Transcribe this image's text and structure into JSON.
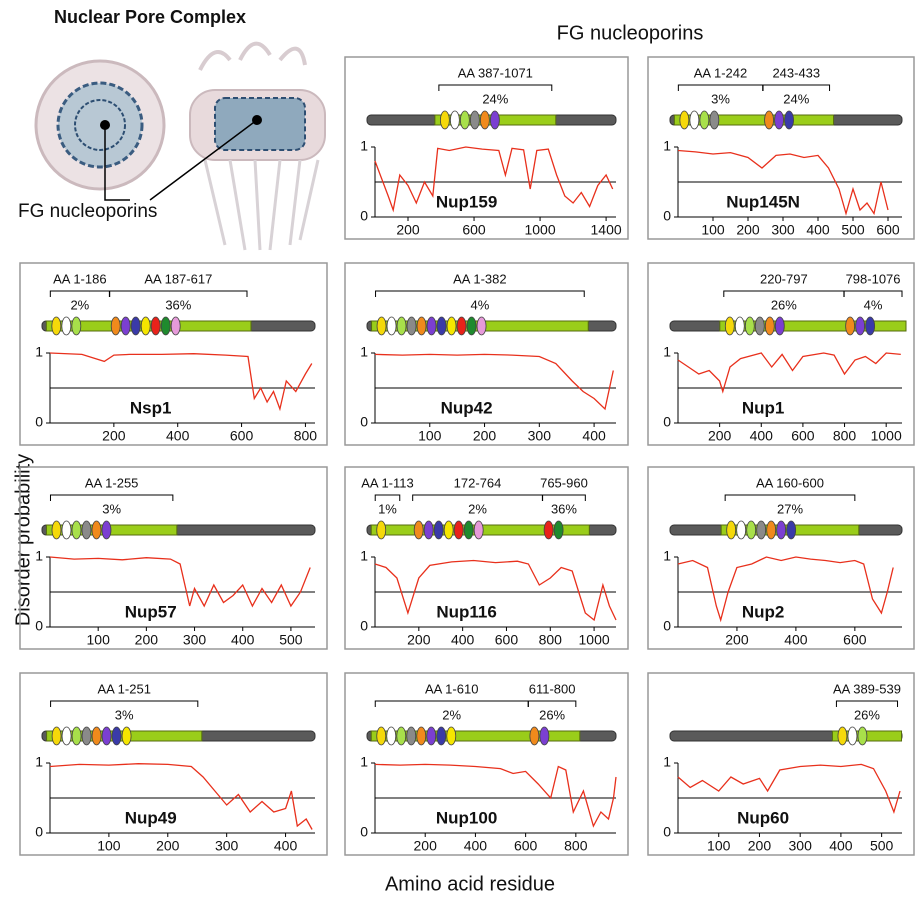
{
  "figure": {
    "title": "Nuclear  Pore Complex",
    "npc_label": "FG nucleoporins",
    "header": "FG nucleoporins",
    "y_label": "Disorder  probability",
    "x_label": "Amino acid residue"
  },
  "chart_data": [
    {
      "type": "line",
      "title": "Nup159",
      "regions": [
        {
          "label": "AA 387-1071",
          "percent": "24%"
        }
      ],
      "threshold": 0.5,
      "ylim": [
        0,
        1
      ],
      "yticks": [
        0,
        1
      ],
      "xlim": [
        0,
        1460
      ],
      "xticks": [
        200,
        600,
        1000,
        1400
      ],
      "x": [
        0,
        40,
        80,
        110,
        150,
        200,
        250,
        300,
        350,
        380,
        450,
        550,
        650,
        750,
        790,
        830,
        900,
        940,
        980,
        1050,
        1100,
        1150,
        1200,
        1250,
        1300,
        1350,
        1400,
        1440
      ],
      "values": [
        0.8,
        0.55,
        0.3,
        0.1,
        0.6,
        0.45,
        0.2,
        0.5,
        0.3,
        0.98,
        0.95,
        1.0,
        0.97,
        0.95,
        0.6,
        0.98,
        0.96,
        0.4,
        0.95,
        0.97,
        0.6,
        0.3,
        0.2,
        0.35,
        0.15,
        0.45,
        0.6,
        0.4
      ]
    },
    {
      "type": "line",
      "title": "Nup145N",
      "regions": [
        {
          "label": "AA 1-242",
          "percent": "3%"
        },
        {
          "label": "243-433",
          "percent": "24%"
        }
      ],
      "threshold": 0.5,
      "ylim": [
        0,
        1
      ],
      "yticks": [
        0,
        1
      ],
      "xlim": [
        0,
        640
      ],
      "xticks": [
        100,
        200,
        300,
        400,
        500,
        600
      ],
      "x": [
        0,
        50,
        100,
        150,
        200,
        240,
        280,
        320,
        360,
        400,
        430,
        460,
        480,
        500,
        520,
        540,
        560,
        580,
        600
      ],
      "values": [
        0.95,
        0.93,
        0.9,
        0.92,
        0.85,
        0.7,
        0.88,
        0.9,
        0.85,
        0.88,
        0.7,
        0.4,
        0.05,
        0.4,
        0.1,
        0.2,
        0.05,
        0.5,
        0.1
      ]
    },
    {
      "type": "line",
      "title": "Nsp1",
      "regions": [
        {
          "label": "AA 1-186",
          "percent": "2%"
        },
        {
          "label": "AA 187-617",
          "percent": "36%"
        }
      ],
      "threshold": 0.5,
      "ylim": [
        0,
        1
      ],
      "yticks": [
        0,
        1
      ],
      "xlim": [
        0,
        830
      ],
      "xticks": [
        200,
        400,
        600,
        800
      ],
      "x": [
        0,
        100,
        170,
        200,
        250,
        350,
        450,
        550,
        620,
        640,
        660,
        680,
        700,
        720,
        740,
        770,
        800,
        820
      ],
      "values": [
        1.0,
        0.98,
        0.88,
        0.97,
        0.98,
        0.98,
        0.99,
        0.97,
        0.95,
        0.35,
        0.5,
        0.3,
        0.45,
        0.2,
        0.6,
        0.45,
        0.7,
        0.85
      ]
    },
    {
      "type": "line",
      "title": "Nup42",
      "regions": [
        {
          "label": "AA 1-382",
          "percent": "4%"
        }
      ],
      "threshold": 0.5,
      "ylim": [
        0,
        1
      ],
      "yticks": [
        0,
        1
      ],
      "xlim": [
        0,
        440
      ],
      "xticks": [
        100,
        200,
        300,
        400
      ],
      "x": [
        0,
        50,
        100,
        150,
        200,
        250,
        300,
        330,
        360,
        380,
        400,
        420,
        435
      ],
      "values": [
        0.98,
        0.97,
        0.98,
        0.97,
        0.98,
        0.97,
        0.95,
        0.85,
        0.6,
        0.45,
        0.35,
        0.2,
        0.75
      ]
    },
    {
      "type": "line",
      "title": "Nup1",
      "regions": [
        {
          "label": "220-797",
          "percent": "26%"
        },
        {
          "label": "798-1076",
          "percent": "4%"
        }
      ],
      "threshold": 0.5,
      "ylim": [
        0,
        1
      ],
      "yticks": [
        0,
        1
      ],
      "xlim": [
        0,
        1076
      ],
      "xticks": [
        200,
        400,
        600,
        800,
        1000
      ],
      "x": [
        0,
        50,
        100,
        150,
        200,
        215,
        250,
        300,
        400,
        450,
        500,
        550,
        600,
        700,
        750,
        800,
        850,
        900,
        950,
        1000,
        1070
      ],
      "values": [
        0.9,
        0.8,
        0.7,
        0.75,
        0.6,
        0.45,
        0.8,
        0.92,
        1.0,
        0.8,
        0.98,
        0.75,
        0.95,
        1.0,
        0.97,
        0.7,
        0.9,
        0.95,
        0.85,
        1.0,
        0.98
      ]
    },
    {
      "type": "line",
      "title": "Nup57",
      "regions": [
        {
          "label": "AA 1-255",
          "percent": "3%"
        }
      ],
      "threshold": 0.5,
      "ylim": [
        0,
        1
      ],
      "yticks": [
        0,
        1
      ],
      "xlim": [
        0,
        550
      ],
      "xticks": [
        100,
        200,
        300,
        400,
        500
      ],
      "x": [
        0,
        50,
        100,
        150,
        200,
        250,
        270,
        290,
        300,
        320,
        340,
        360,
        380,
        400,
        420,
        440,
        460,
        480,
        500,
        520,
        540
      ],
      "values": [
        1.0,
        0.97,
        0.98,
        0.96,
        0.99,
        0.97,
        0.9,
        0.3,
        0.55,
        0.3,
        0.6,
        0.35,
        0.45,
        0.6,
        0.3,
        0.55,
        0.35,
        0.6,
        0.3,
        0.5,
        0.85
      ]
    },
    {
      "type": "line",
      "title": "Nup116",
      "regions": [
        {
          "label": "AA 1-113",
          "percent": "1%"
        },
        {
          "label": "172-764",
          "percent": "2%"
        },
        {
          "label": "765-960",
          "percent": "36%"
        }
      ],
      "threshold": 0.5,
      "ylim": [
        0,
        1
      ],
      "yticks": [
        0,
        1
      ],
      "xlim": [
        0,
        1100
      ],
      "xticks": [
        200,
        400,
        600,
        800,
        1000
      ],
      "x": [
        0,
        50,
        100,
        150,
        200,
        250,
        350,
        450,
        550,
        650,
        700,
        750,
        800,
        850,
        900,
        940,
        960,
        1000,
        1040,
        1070,
        1100
      ],
      "values": [
        0.9,
        0.85,
        0.7,
        0.2,
        0.7,
        0.88,
        0.93,
        0.95,
        0.92,
        0.94,
        0.9,
        0.6,
        0.7,
        0.85,
        0.8,
        0.4,
        0.2,
        0.1,
        0.6,
        0.3,
        0.1
      ]
    },
    {
      "type": "line",
      "title": "Nup2",
      "regions": [
        {
          "label": "AA 160-600",
          "percent": "27%"
        }
      ],
      "threshold": 0.5,
      "ylim": [
        0,
        1
      ],
      "yticks": [
        0,
        1
      ],
      "xlim": [
        0,
        760
      ],
      "xticks": [
        200,
        400,
        600
      ],
      "x": [
        0,
        50,
        100,
        130,
        145,
        170,
        200,
        250,
        300,
        350,
        400,
        450,
        500,
        550,
        600,
        630,
        660,
        690,
        710,
        730
      ],
      "values": [
        0.9,
        0.95,
        0.85,
        0.3,
        0.1,
        0.5,
        0.85,
        0.9,
        1.0,
        0.95,
        1.0,
        0.97,
        0.95,
        0.92,
        0.95,
        0.9,
        0.4,
        0.2,
        0.5,
        0.85
      ]
    },
    {
      "type": "line",
      "title": "Nup49",
      "regions": [
        {
          "label": "AA 1-251",
          "percent": "3%"
        }
      ],
      "threshold": 0.5,
      "ylim": [
        0,
        1
      ],
      "yticks": [
        0,
        1
      ],
      "xlim": [
        0,
        450
      ],
      "xticks": [
        100,
        200,
        300,
        400
      ],
      "x": [
        0,
        50,
        100,
        150,
        200,
        240,
        260,
        280,
        300,
        320,
        340,
        360,
        380,
        400,
        410,
        420,
        435,
        445
      ],
      "values": [
        0.95,
        0.98,
        0.97,
        0.99,
        0.98,
        0.95,
        0.8,
        0.6,
        0.4,
        0.55,
        0.3,
        0.45,
        0.3,
        0.35,
        0.6,
        0.1,
        0.2,
        0.05
      ]
    },
    {
      "type": "line",
      "title": "Nup100",
      "regions": [
        {
          "label": "AA 1-610",
          "percent": "2%"
        },
        {
          "label": "611-800",
          "percent": "26%"
        }
      ],
      "threshold": 0.5,
      "ylim": [
        0,
        1
      ],
      "yticks": [
        0,
        1
      ],
      "xlim": [
        0,
        960
      ],
      "xticks": [
        200,
        400,
        600,
        800
      ],
      "x": [
        0,
        100,
        200,
        300,
        400,
        500,
        550,
        600,
        650,
        700,
        730,
        760,
        790,
        830,
        870,
        900,
        930,
        950,
        960
      ],
      "values": [
        0.98,
        0.97,
        0.98,
        0.97,
        0.95,
        0.92,
        0.85,
        0.88,
        0.7,
        0.5,
        0.95,
        0.9,
        0.3,
        0.6,
        0.1,
        0.3,
        0.2,
        0.5,
        0.8
      ]
    },
    {
      "type": "line",
      "title": "Nup60",
      "regions": [
        {
          "label": "AA 389-539",
          "percent": "26%"
        }
      ],
      "threshold": 0.5,
      "ylim": [
        0,
        1
      ],
      "yticks": [
        0,
        1
      ],
      "xlim": [
        0,
        550
      ],
      "xticks": [
        100,
        200,
        300,
        400,
        500
      ],
      "x": [
        0,
        30,
        60,
        100,
        130,
        160,
        200,
        220,
        250,
        300,
        350,
        400,
        450,
        480,
        510,
        530,
        545
      ],
      "values": [
        0.8,
        0.65,
        0.75,
        0.6,
        0.8,
        0.7,
        0.78,
        0.6,
        0.9,
        0.95,
        0.97,
        0.95,
        0.98,
        0.92,
        0.6,
        0.3,
        0.6
      ]
    }
  ]
}
